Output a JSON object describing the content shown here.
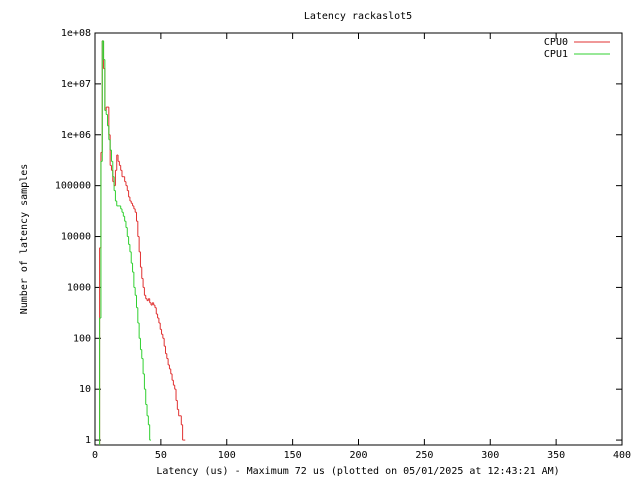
{
  "chart_data": {
    "type": "line",
    "title": "Latency rackaslot5",
    "x_label": "Latency (us) - Maximum 72 us (plotted on 05/01/2025 at 12:43:21 AM)",
    "y_label": "Number of latency samples",
    "log_y": true,
    "legend": "top-right",
    "xlim": [
      0,
      400
    ],
    "xticks": [
      0,
      50,
      100,
      150,
      200,
      250,
      300,
      350,
      400
    ],
    "ylim": [
      0.8,
      100000000
    ],
    "yticks": [
      1,
      10,
      100,
      1000,
      10000,
      100000,
      {
        "value": 1000000,
        "label": "1e+06"
      },
      {
        "value": 10000000,
        "label": "1e+07"
      },
      {
        "value": 100000000,
        "label": "1e+08"
      }
    ],
    "x": [
      3,
      4,
      5,
      6,
      7,
      8,
      9,
      10,
      11,
      12,
      13,
      14,
      15,
      16,
      17,
      18,
      19,
      20,
      21,
      22,
      23,
      24,
      25,
      26,
      27,
      28,
      29,
      30,
      31,
      32,
      33,
      34,
      35,
      36,
      37,
      38,
      39,
      40,
      41,
      42,
      43,
      44,
      45,
      46,
      47,
      48,
      49,
      50,
      51,
      52,
      53,
      54,
      55,
      56,
      57,
      58,
      59,
      60,
      61,
      62,
      63,
      64,
      65,
      66,
      67,
      68,
      69,
      70
    ],
    "series": [
      {
        "name": "CPU0",
        "color": "#e03030",
        "values": [
          null,
          6000,
          450000,
          70000000,
          20000000,
          3000000,
          3500000,
          3500000,
          1000000,
          250000,
          200000,
          120000,
          100000,
          200000,
          400000,
          300000,
          250000,
          200000,
          150000,
          150000,
          120000,
          100000,
          80000,
          60000,
          50000,
          45000,
          40000,
          35000,
          30000,
          20000,
          10000,
          5000,
          2500,
          1500,
          1000,
          700,
          600,
          550,
          600,
          500,
          450,
          500,
          450,
          400,
          300,
          250,
          200,
          150,
          120,
          100,
          70,
          50,
          40,
          30,
          25,
          20,
          15,
          12,
          10,
          6,
          4,
          3,
          3,
          2,
          1,
          1,
          null,
          null
        ]
      },
      {
        "name": "CPU1",
        "color": "#30d030",
        "values": [
          null,
          250,
          300000,
          70000000,
          30000000,
          3000000,
          2500000,
          1500000,
          800000,
          500000,
          300000,
          150000,
          80000,
          50000,
          40000,
          40000,
          40000,
          35000,
          30000,
          25000,
          20000,
          15000,
          10000,
          7000,
          5000,
          3000,
          2000,
          1000,
          700,
          400,
          200,
          100,
          60,
          40,
          20,
          10,
          5,
          3,
          2,
          1,
          null,
          null,
          null,
          null,
          null,
          null,
          null,
          null,
          null,
          null,
          null,
          null,
          null,
          null,
          null,
          null,
          null,
          null,
          null,
          null,
          null,
          null,
          null,
          null,
          null,
          null,
          null,
          null
        ]
      }
    ]
  }
}
